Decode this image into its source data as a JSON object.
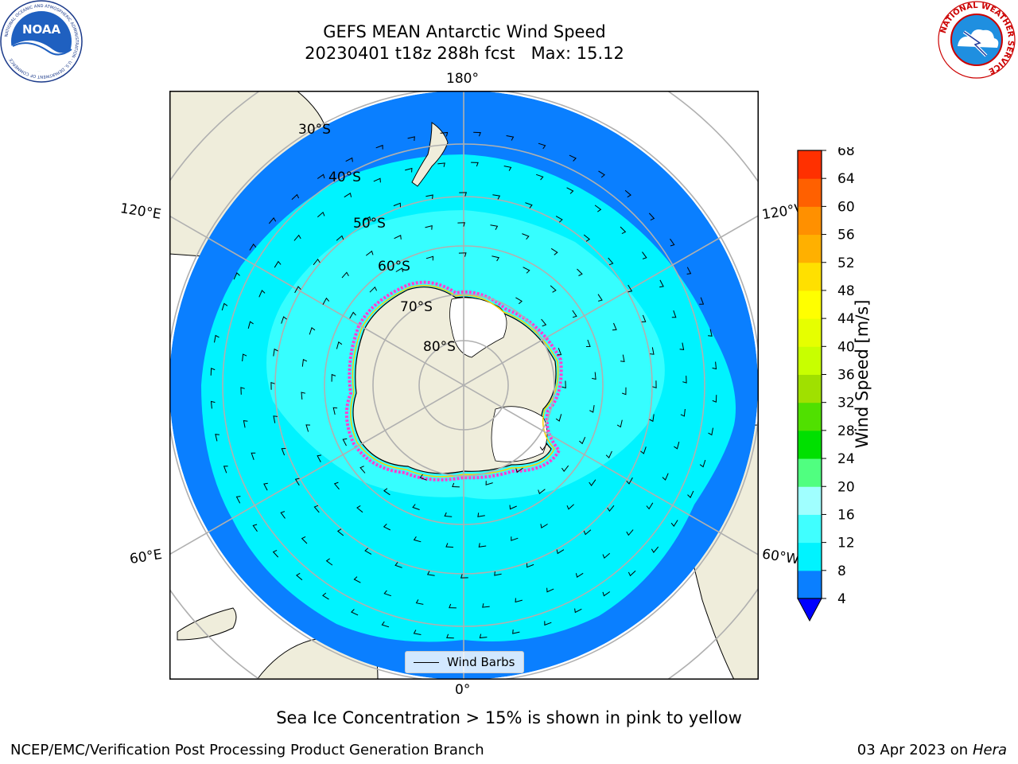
{
  "title": {
    "line1": "GEFS MEAN Antarctic Wind Speed",
    "line2": "20230401 t18z 288h fcst   Max: 15.12"
  },
  "logos": {
    "noaa_text": "NOAA",
    "noaa_ring_text": "NATIONAL OCEANIC AND ATMOSPHERIC ADMINISTRATION · U.S. DEPARTMENT OF COMMERCE",
    "nws_ring_text": "NATIONAL WEATHER SERVICE"
  },
  "map": {
    "projection": "south-polar-stereographic",
    "longitude_labels": {
      "top": "180°",
      "bottom": "0°",
      "upper_left": "120°E",
      "upper_right": "120°W",
      "lower_left": "60°E",
      "lower_right": "60°W"
    },
    "latitude_labels": [
      "30°S",
      "40°S",
      "50°S",
      "60°S",
      "70°S",
      "80°S"
    ],
    "colors": {
      "ocean_outer": "#0a7fff",
      "wind_8_12": "#00f3ff",
      "wind_12_16": "#40ffff",
      "land": "#efeddb",
      "ice_edge_pink": "#ff40d0",
      "ice_edge_yellow": "#ffd000"
    },
    "legend": {
      "label": "Wind Barbs"
    }
  },
  "colorbar": {
    "label": "Wind Speed [m/s]",
    "ticks": [
      "68",
      "64",
      "60",
      "56",
      "52",
      "48",
      "44",
      "40",
      "36",
      "32",
      "28",
      "24",
      "20",
      "16",
      "12",
      "8",
      "4"
    ],
    "colors_bottom_to_top": [
      "#0a7fff",
      "#00f3ff",
      "#40ffff",
      "#a0ffff",
      "#50ff80",
      "#00e000",
      "#50e000",
      "#a0e000",
      "#c8ff00",
      "#e6ff00",
      "#ffff00",
      "#ffe000",
      "#ffb000",
      "#ff9000",
      "#ff6000",
      "#ff3000",
      "#ff0000"
    ],
    "under_color": "#0000ff"
  },
  "subtitle": "Sea Ice Concentration > 15% is shown in pink to yellow",
  "footer": {
    "left": "NCEP/EMC/Verification Post Processing Product Generation Branch",
    "right_date": "03 Apr 2023 on ",
    "right_host": "Hera"
  }
}
